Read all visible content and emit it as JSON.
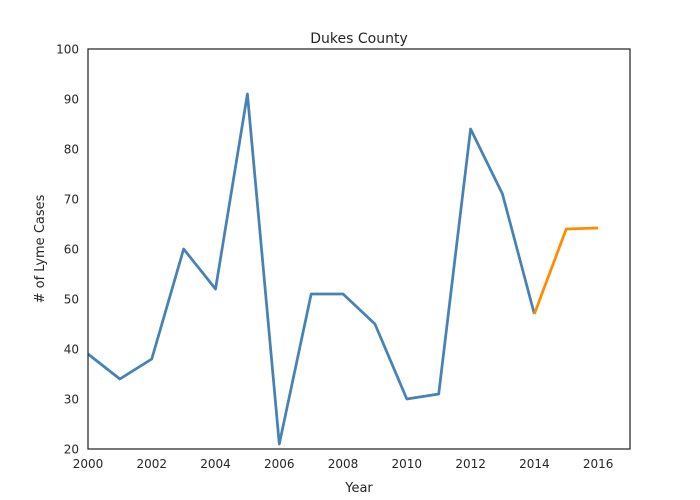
{
  "chart_data": {
    "type": "line",
    "title": "Dukes County",
    "xlabel": "Year",
    "ylabel": "# of Lyme Cases",
    "xlim": [
      2000,
      2017
    ],
    "ylim": [
      20,
      100
    ],
    "xticks": [
      2000,
      2002,
      2004,
      2006,
      2008,
      2010,
      2012,
      2014,
      2016
    ],
    "yticks": [
      20,
      30,
      40,
      50,
      60,
      70,
      80,
      90,
      100
    ],
    "grid": false,
    "legend": null,
    "series": [
      {
        "color": "#4682b4",
        "points": [
          {
            "x": 2000,
            "y": 39
          },
          {
            "x": 2001,
            "y": 34
          },
          {
            "x": 2002,
            "y": 38
          },
          {
            "x": 2003,
            "y": 60
          },
          {
            "x": 2004,
            "y": 52
          },
          {
            "x": 2005,
            "y": 91
          },
          {
            "x": 2006,
            "y": 21
          },
          {
            "x": 2007,
            "y": 51
          },
          {
            "x": 2008,
            "y": 51
          },
          {
            "x": 2009,
            "y": 45
          },
          {
            "x": 2010,
            "y": 30
          },
          {
            "x": 2011,
            "y": 31
          },
          {
            "x": 2012,
            "y": 84
          },
          {
            "x": 2013,
            "y": 71
          },
          {
            "x": 2014,
            "y": 47
          }
        ]
      },
      {
        "color": "#ff8c00",
        "points": [
          {
            "x": 2014,
            "y": 47
          },
          {
            "x": 2015,
            "y": 64
          },
          {
            "x": 2016,
            "y": 64.2
          }
        ]
      }
    ]
  }
}
